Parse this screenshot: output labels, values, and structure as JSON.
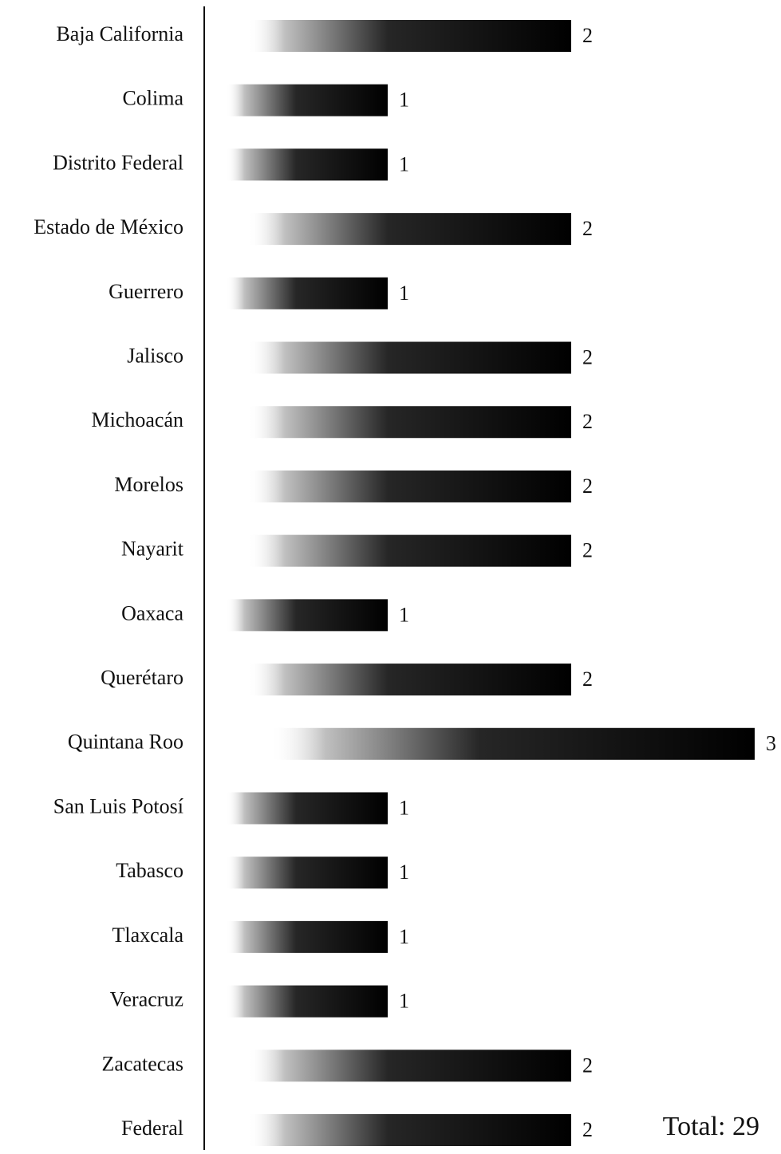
{
  "chart_data": {
    "type": "barh",
    "categories": [
      "Baja California",
      "Colima",
      "Distrito Federal",
      "Estado de México",
      "Guerrero",
      "Jalisco",
      "Michoacán",
      "Morelos",
      "Nayarit",
      "Oaxaca",
      "Querétaro",
      "Quintana Roo",
      "San Luis Potosí",
      "Tabasco",
      "Tlaxcala",
      "Veracruz",
      "Zacatecas",
      "Federal"
    ],
    "values": [
      2,
      1,
      1,
      2,
      1,
      2,
      2,
      2,
      2,
      1,
      2,
      3,
      1,
      1,
      1,
      1,
      2,
      2
    ],
    "color": "#000000",
    "xlim": [
      0,
      3
    ],
    "annotation": "Total: 29"
  }
}
